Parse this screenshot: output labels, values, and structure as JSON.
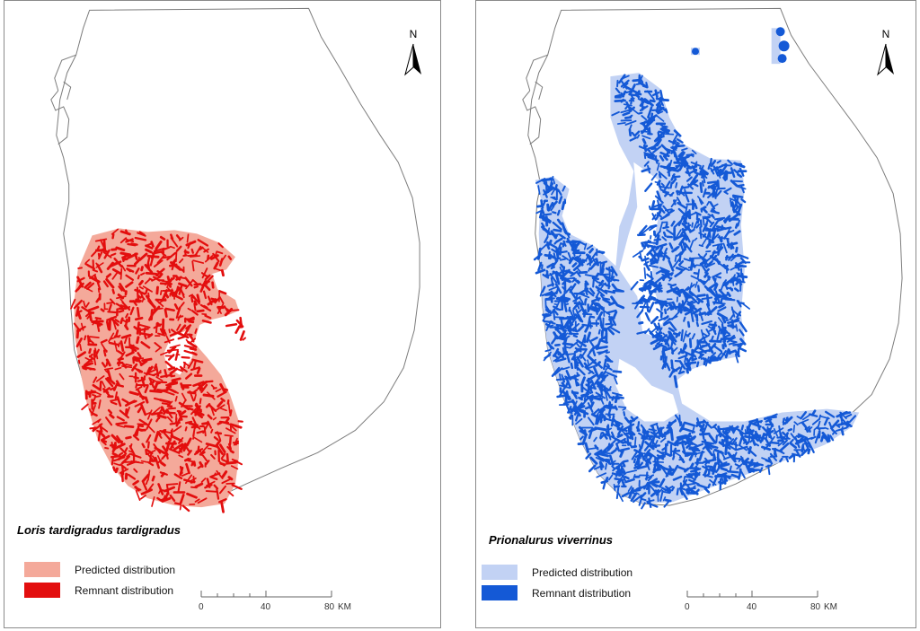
{
  "panels": [
    {
      "species": "Loris tardigradus tardigradus",
      "legend": [
        {
          "label": "Predicted distribution",
          "color": "#f4a99a"
        },
        {
          "label": "Remnant distribution",
          "color": "#e30e0e"
        }
      ]
    },
    {
      "species": "Prionalurus viverrinus",
      "legend": [
        {
          "label": "Predicted distribution",
          "color": "#c2d2f4"
        },
        {
          "label": "Remnant distribution",
          "color": "#1459d6"
        }
      ]
    }
  ],
  "north_label": "N",
  "scale": {
    "labels": [
      "0",
      "40",
      "80"
    ],
    "unit": "KM"
  }
}
